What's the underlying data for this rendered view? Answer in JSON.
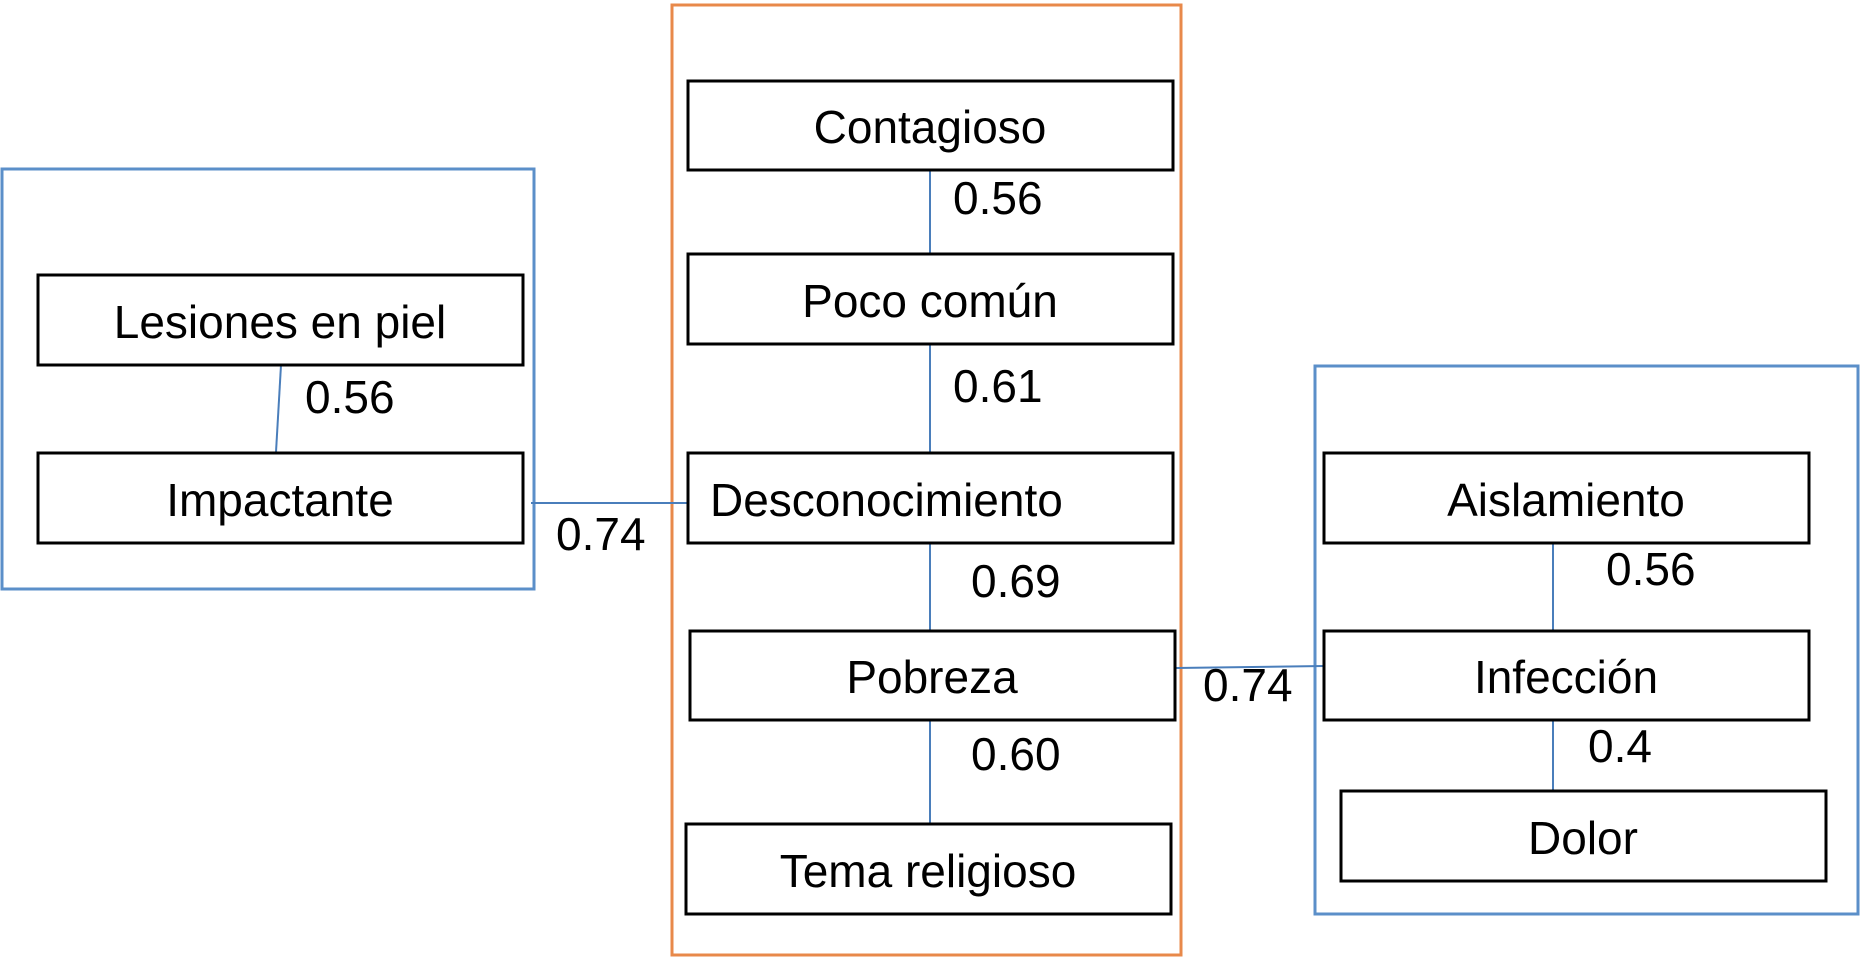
{
  "clusters": {
    "left": {
      "nodes": {
        "lesiones": "Lesiones en piel",
        "impactante": "Impactante"
      },
      "edges": {
        "lesiones_impactante": "0.56"
      }
    },
    "center": {
      "nodes": {
        "contagioso": "Contagioso",
        "poco_comun": "Poco común",
        "desconocimiento": "Desconocimiento",
        "pobreza": "Pobreza",
        "tema_religioso": "Tema religioso"
      },
      "edges": {
        "contagioso_poco_comun": "0.56",
        "poco_comun_desconocimiento": "0.61",
        "desconocimiento_pobreza": "0.69",
        "pobreza_tema_religioso": "0.60"
      }
    },
    "right": {
      "nodes": {
        "aislamiento": "Aislamiento",
        "infeccion": "Infección",
        "dolor": "Dolor"
      },
      "edges": {
        "aislamiento_infeccion": "0.56",
        "infeccion_dolor": "0.4"
      }
    }
  },
  "links": {
    "impactante_desconocimiento": "0.74",
    "pobreza_infeccion": "0.74"
  },
  "colors": {
    "side_cluster_border": "#5b8fc9",
    "center_cluster_border": "#e8894a",
    "edge_line": "#4a7ebb",
    "node_border": "#000000"
  }
}
